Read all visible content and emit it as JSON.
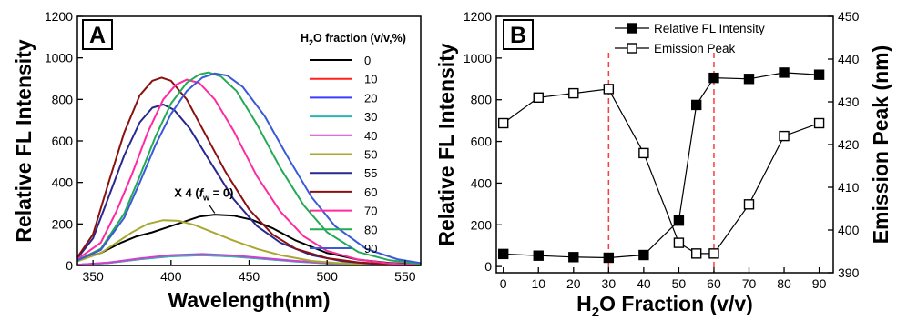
{
  "chart_data": [
    {
      "panel_label": "A",
      "type": "line",
      "xlabel": "Wavelength(nm)",
      "ylabel": "Relative FL Intensity",
      "xlim": [
        340,
        560
      ],
      "ylim": [
        0,
        1200
      ],
      "xticks": [
        350,
        400,
        450,
        500,
        550
      ],
      "yticks": [
        0,
        200,
        400,
        600,
        800,
        1000,
        1200
      ],
      "legend_title": "H2O fraction (v/v,%)",
      "legend_title_parts": [
        "H",
        "2",
        "O fraction (v/v,%)"
      ],
      "legend_placement": "right",
      "annotation": {
        "parts": [
          "X 4 (",
          "f",
          "w",
          " = 0)"
        ],
        "x": 402,
        "y": 330
      },
      "grid": false,
      "series": [
        {
          "name": "0",
          "color": "#000000",
          "points": [
            [
              340,
              25
            ],
            [
              355,
              60
            ],
            [
              368,
              110
            ],
            [
              378,
              140
            ],
            [
              388,
              160
            ],
            [
              398,
              185
            ],
            [
              408,
              210
            ],
            [
              418,
              235
            ],
            [
              428,
              245
            ],
            [
              440,
              240
            ],
            [
              452,
              220
            ],
            [
              465,
              180
            ],
            [
              480,
              120
            ],
            [
              500,
              60
            ],
            [
              520,
              28
            ],
            [
              540,
              12
            ],
            [
              560,
              5
            ]
          ]
        },
        {
          "name": "10",
          "color": "#ff2020",
          "points": [
            [
              340,
              3
            ],
            [
              360,
              12
            ],
            [
              380,
              30
            ],
            [
              400,
              45
            ],
            [
              420,
              50
            ],
            [
              440,
              44
            ],
            [
              460,
              32
            ],
            [
              480,
              20
            ],
            [
              500,
              10
            ],
            [
              520,
              5
            ],
            [
              540,
              2
            ],
            [
              560,
              1
            ]
          ]
        },
        {
          "name": "20",
          "color": "#3c3cff",
          "points": [
            [
              340,
              3
            ],
            [
              360,
              13
            ],
            [
              380,
              32
            ],
            [
              400,
              47
            ],
            [
              420,
              52
            ],
            [
              440,
              46
            ],
            [
              460,
              33
            ],
            [
              480,
              21
            ],
            [
              500,
              11
            ],
            [
              520,
              5
            ],
            [
              540,
              2
            ],
            [
              560,
              1
            ]
          ]
        },
        {
          "name": "30",
          "color": "#2ab5b5",
          "points": [
            [
              340,
              3
            ],
            [
              360,
              12
            ],
            [
              380,
              30
            ],
            [
              400,
              44
            ],
            [
              420,
              49
            ],
            [
              440,
              43
            ],
            [
              460,
              31
            ],
            [
              480,
              19
            ],
            [
              500,
              10
            ],
            [
              520,
              5
            ],
            [
              540,
              2
            ],
            [
              560,
              1
            ]
          ]
        },
        {
          "name": "40",
          "color": "#d040d0",
          "points": [
            [
              340,
              3
            ],
            [
              360,
              14
            ],
            [
              380,
              34
            ],
            [
              400,
              50
            ],
            [
              420,
              55
            ],
            [
              440,
              48
            ],
            [
              460,
              35
            ],
            [
              480,
              22
            ],
            [
              500,
              12
            ],
            [
              520,
              6
            ],
            [
              540,
              2
            ],
            [
              560,
              1
            ]
          ]
        },
        {
          "name": "50",
          "color": "#a8a830",
          "points": [
            [
              340,
              20
            ],
            [
              355,
              60
            ],
            [
              365,
              110
            ],
            [
              375,
              160
            ],
            [
              385,
              200
            ],
            [
              395,
              218
            ],
            [
              405,
              215
            ],
            [
              415,
              195
            ],
            [
              425,
              165
            ],
            [
              440,
              120
            ],
            [
              455,
              80
            ],
            [
              470,
              50
            ],
            [
              490,
              22
            ],
            [
              510,
              10
            ],
            [
              530,
              4
            ],
            [
              560,
              1
            ]
          ]
        },
        {
          "name": "55",
          "color": "#282890",
          "points": [
            [
              340,
              35
            ],
            [
              350,
              130
            ],
            [
              360,
              330
            ],
            [
              370,
              530
            ],
            [
              380,
              690
            ],
            [
              388,
              760
            ],
            [
              395,
              775
            ],
            [
              402,
              750
            ],
            [
              412,
              660
            ],
            [
              425,
              500
            ],
            [
              440,
              320
            ],
            [
              455,
              190
            ],
            [
              470,
              110
            ],
            [
              490,
              50
            ],
            [
              510,
              20
            ],
            [
              530,
              8
            ],
            [
              560,
              2
            ]
          ]
        },
        {
          "name": "60",
          "color": "#8b1010",
          "points": [
            [
              340,
              40
            ],
            [
              350,
              150
            ],
            [
              360,
              400
            ],
            [
              370,
              640
            ],
            [
              380,
              820
            ],
            [
              388,
              890
            ],
            [
              394,
              905
            ],
            [
              400,
              890
            ],
            [
              410,
              800
            ],
            [
              420,
              660
            ],
            [
              435,
              450
            ],
            [
              450,
              270
            ],
            [
              465,
              150
            ],
            [
              480,
              80
            ],
            [
              500,
              35
            ],
            [
              520,
              15
            ],
            [
              540,
              6
            ],
            [
              560,
              2
            ]
          ]
        },
        {
          "name": "70",
          "color": "#ff2aa0",
          "points": [
            [
              340,
              30
            ],
            [
              355,
              110
            ],
            [
              365,
              260
            ],
            [
              375,
              440
            ],
            [
              385,
              640
            ],
            [
              395,
              800
            ],
            [
              403,
              870
            ],
            [
              410,
              895
            ],
            [
              418,
              880
            ],
            [
              428,
              800
            ],
            [
              440,
              650
            ],
            [
              455,
              430
            ],
            [
              470,
              260
            ],
            [
              485,
              140
            ],
            [
              500,
              70
            ],
            [
              520,
              28
            ],
            [
              540,
              10
            ],
            [
              560,
              3
            ]
          ]
        },
        {
          "name": "80",
          "color": "#22aa55",
          "points": [
            [
              340,
              25
            ],
            [
              355,
              80
            ],
            [
              370,
              250
            ],
            [
              380,
              430
            ],
            [
              390,
              620
            ],
            [
              400,
              780
            ],
            [
              410,
              880
            ],
            [
              418,
              920
            ],
            [
              424,
              930
            ],
            [
              432,
              910
            ],
            [
              442,
              840
            ],
            [
              455,
              680
            ],
            [
              470,
              470
            ],
            [
              485,
              290
            ],
            [
              500,
              160
            ],
            [
              520,
              65
            ],
            [
              540,
              25
            ],
            [
              560,
              8
            ]
          ]
        },
        {
          "name": "90",
          "color": "#3a5ad8",
          "points": [
            [
              340,
              25
            ],
            [
              355,
              75
            ],
            [
              370,
              230
            ],
            [
              380,
              400
            ],
            [
              390,
              580
            ],
            [
              400,
              730
            ],
            [
              410,
              840
            ],
            [
              420,
              905
            ],
            [
              428,
              925
            ],
            [
              436,
              915
            ],
            [
              446,
              860
            ],
            [
              460,
              720
            ],
            [
              475,
              520
            ],
            [
              490,
              330
            ],
            [
              505,
              190
            ],
            [
              525,
              80
            ],
            [
              545,
              30
            ],
            [
              560,
              12
            ]
          ]
        }
      ]
    },
    {
      "panel_label": "B",
      "type": "line",
      "xlabel": "H2O Fraction (v/v)",
      "xlabel_parts": [
        "H",
        "2",
        "O Fraction (v/v)"
      ],
      "ylabel": "Relative FL Intensity",
      "y2label": "Emission Peak (nm)",
      "xlim": [
        -2,
        94
      ],
      "ylim": [
        -30,
        1200
      ],
      "y2lim": [
        390,
        450
      ],
      "xticks": [
        0,
        10,
        20,
        30,
        40,
        50,
        60,
        70,
        80,
        90
      ],
      "yticks": [
        0,
        200,
        400,
        600,
        800,
        1000,
        1200
      ],
      "y2ticks": [
        390,
        400,
        410,
        420,
        430,
        440,
        450
      ],
      "legend_placement": "top-center",
      "grid": false,
      "vlines": [
        30,
        60
      ],
      "vline_color": "#ff3b3b",
      "series": [
        {
          "name": "Relative FL Intensity",
          "axis": "left",
          "marker": "filled-square",
          "color": "#000000",
          "x": [
            0,
            10,
            20,
            30,
            40,
            50,
            55,
            60,
            70,
            80,
            90
          ],
          "values": [
            60,
            52,
            45,
            42,
            55,
            220,
            775,
            905,
            900,
            930,
            920
          ]
        },
        {
          "name": "Emission Peak",
          "axis": "right",
          "marker": "open-square",
          "color": "#000000",
          "x": [
            0,
            10,
            20,
            30,
            40,
            50,
            55,
            60,
            70,
            80,
            90
          ],
          "values": [
            425,
            431,
            432,
            433,
            418,
            397,
            394.5,
            394.5,
            406,
            422,
            425
          ]
        }
      ]
    }
  ]
}
